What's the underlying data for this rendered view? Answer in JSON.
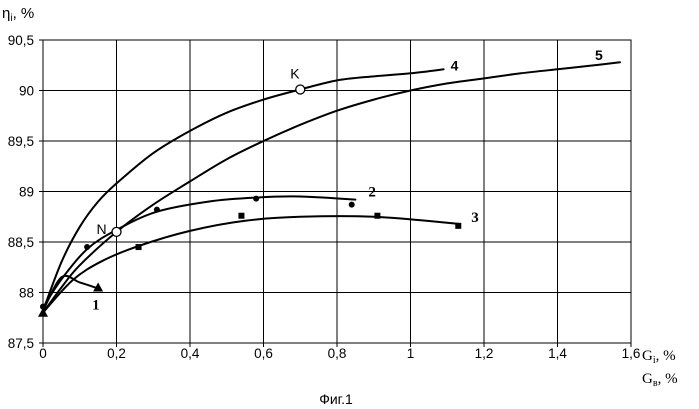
{
  "figure": {
    "caption": "Фиг.1"
  },
  "chart_data": {
    "type": "line",
    "ylabel": {
      "symbol": "η",
      "subscript": "i",
      "unit": ", %"
    },
    "xlabel": [
      {
        "symbol": "G",
        "subscript": "i",
        "unit": ", %"
      },
      {
        "symbol": "G",
        "subscript": "в",
        "unit": ", %"
      }
    ],
    "xlim": [
      0,
      1.6
    ],
    "ylim": [
      87.5,
      90.5
    ],
    "xticks": {
      "values": [
        0,
        0.2,
        0.4,
        0.6,
        0.8,
        1.0,
        1.2,
        1.4,
        1.6
      ],
      "labels": [
        "0",
        "0,2",
        "0,4",
        "0,6",
        "0,8",
        "1",
        "1,2",
        "1,4",
        "1,6"
      ]
    },
    "yticks": {
      "values": [
        87.5,
        88,
        88.5,
        89,
        89.5,
        90,
        90.5
      ],
      "labels": [
        "87,5",
        "88",
        "88,5",
        "89",
        "89,5",
        "90",
        "90,5"
      ]
    },
    "grid": true,
    "series": [
      {
        "name": "1",
        "marker": "triangle",
        "line": [
          [
            0,
            87.82
          ],
          [
            0.05,
            88.15
          ],
          [
            0.1,
            88.1
          ],
          [
            0.15,
            88.04
          ]
        ],
        "points": [
          [
            0,
            87.8
          ],
          [
            0.15,
            88.05
          ]
        ]
      },
      {
        "name": "2",
        "marker": "circle",
        "line": [
          [
            0,
            87.85
          ],
          [
            0.05,
            88.13
          ],
          [
            0.12,
            88.43
          ],
          [
            0.2,
            88.62
          ],
          [
            0.31,
            88.8
          ],
          [
            0.45,
            88.9
          ],
          [
            0.58,
            88.94
          ],
          [
            0.7,
            88.95
          ],
          [
            0.85,
            88.92
          ]
        ],
        "points": [
          [
            0,
            87.86
          ],
          [
            0.12,
            88.45
          ],
          [
            0.31,
            88.82
          ],
          [
            0.58,
            88.93
          ],
          [
            0.84,
            88.87
          ]
        ]
      },
      {
        "name": "3",
        "marker": "square",
        "line": [
          [
            0,
            87.8
          ],
          [
            0.08,
            88.12
          ],
          [
            0.16,
            88.31
          ],
          [
            0.26,
            88.46
          ],
          [
            0.4,
            88.61
          ],
          [
            0.55,
            88.71
          ],
          [
            0.7,
            88.75
          ],
          [
            0.9,
            88.75
          ],
          [
            1.13,
            88.68
          ]
        ],
        "points": [
          [
            0.26,
            88.45
          ],
          [
            0.54,
            88.76
          ],
          [
            0.91,
            88.76
          ],
          [
            1.13,
            88.66
          ]
        ]
      },
      {
        "name": "4",
        "marker": "none",
        "line": [
          [
            0,
            87.82
          ],
          [
            0.05,
            88.3
          ],
          [
            0.1,
            88.65
          ],
          [
            0.15,
            88.9
          ],
          [
            0.2,
            89.08
          ],
          [
            0.3,
            89.38
          ],
          [
            0.4,
            89.6
          ],
          [
            0.5,
            89.78
          ],
          [
            0.6,
            89.91
          ],
          [
            0.7,
            90.01
          ],
          [
            0.8,
            90.1
          ],
          [
            0.9,
            90.14
          ],
          [
            1.0,
            90.17
          ],
          [
            1.09,
            90.21
          ]
        ],
        "points": []
      },
      {
        "name": "5",
        "marker": "none",
        "line": [
          [
            0,
            87.8
          ],
          [
            0.05,
            88.05
          ],
          [
            0.1,
            88.27
          ],
          [
            0.2,
            88.6
          ],
          [
            0.3,
            88.87
          ],
          [
            0.4,
            89.1
          ],
          [
            0.5,
            89.32
          ],
          [
            0.6,
            89.5
          ],
          [
            0.7,
            89.66
          ],
          [
            0.8,
            89.8
          ],
          [
            0.9,
            89.91
          ],
          [
            1.0,
            90.0
          ],
          [
            1.1,
            90.07
          ],
          [
            1.2,
            90.12
          ],
          [
            1.3,
            90.17
          ],
          [
            1.4,
            90.21
          ],
          [
            1.5,
            90.25
          ],
          [
            1.57,
            90.28
          ]
        ],
        "points": []
      }
    ],
    "annotations": [
      {
        "label": "K",
        "x": 0.7,
        "y": 90.01,
        "marker": "open-circle"
      },
      {
        "label": "N",
        "x": 0.2,
        "y": 88.6,
        "marker": "open-circle"
      }
    ]
  }
}
